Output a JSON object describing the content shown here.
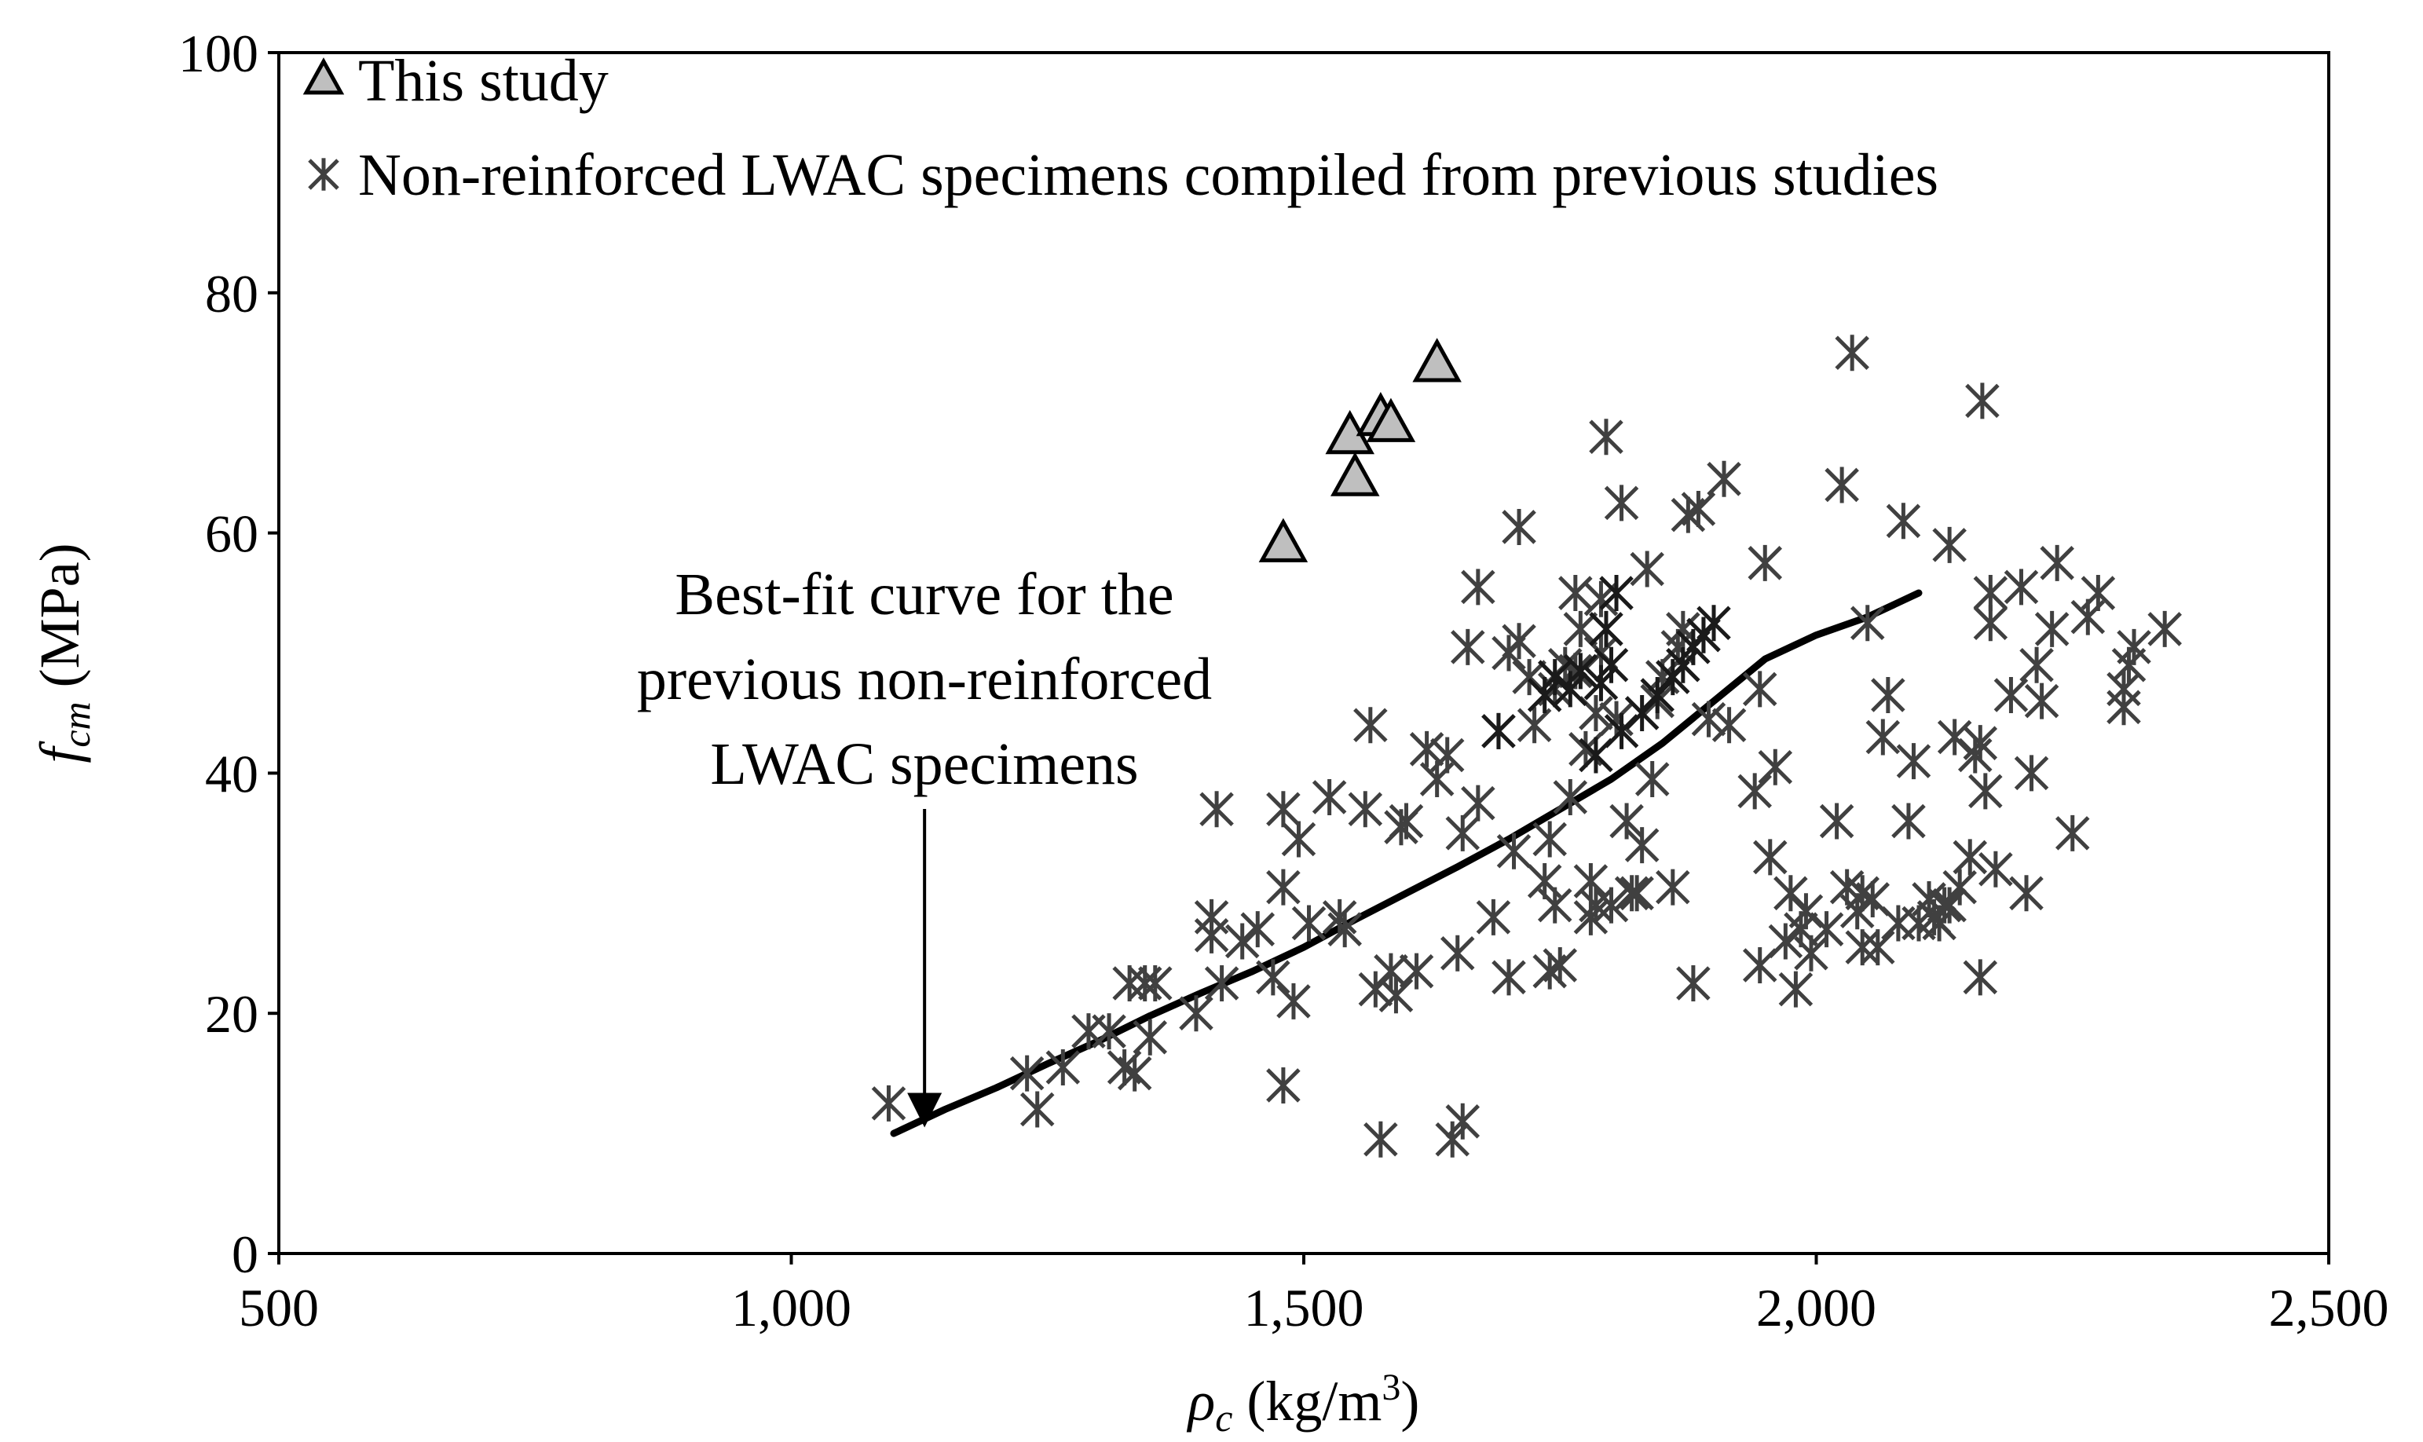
{
  "chart_data": {
    "type": "scatter",
    "title": "",
    "xlabel": {
      "symbol": "ρ",
      "subscript": "c",
      "unit_pre": " (kg/m",
      "unit_sup": "3",
      "unit_post": ")"
    },
    "ylabel": {
      "symbol": "f",
      "subscript": "cm",
      "unit": " (MPa)"
    },
    "xlim": [
      500,
      2500
    ],
    "ylim": [
      0,
      100
    ],
    "xticks": [
      500,
      1000,
      1500,
      2000,
      2500
    ],
    "xtick_labels": [
      "500",
      "1,000",
      "1,500",
      "2,000",
      "2,500"
    ],
    "yticks": [
      0,
      20,
      40,
      60,
      80,
      100
    ],
    "ytick_labels": [
      "0",
      "20",
      "40",
      "60",
      "80",
      "100"
    ],
    "grid": false,
    "legend_position": "top-left",
    "series": [
      {
        "name": "This study",
        "marker": "triangle",
        "color": "#bfbfbf",
        "points": [
          [
            1480,
            59
          ],
          [
            1550,
            64.5
          ],
          [
            1545,
            68
          ],
          [
            1575,
            69.5
          ],
          [
            1585,
            69
          ],
          [
            1630,
            74
          ]
        ]
      },
      {
        "name": "Non-reinforced LWAC specimens compiled from previous studies",
        "marker": "asterisk",
        "color": "#404040",
        "points": [
          [
            1095,
            12.5
          ],
          [
            1230,
            15
          ],
          [
            1240,
            12
          ],
          [
            1265,
            15.5
          ],
          [
            1290,
            18.5
          ],
          [
            1310,
            18.5
          ],
          [
            1325,
            15.5
          ],
          [
            1330,
            22.5
          ],
          [
            1335,
            15
          ],
          [
            1345,
            22.5
          ],
          [
            1350,
            18
          ],
          [
            1355,
            22.5
          ],
          [
            1395,
            20
          ],
          [
            1410,
            26.5
          ],
          [
            1410,
            28
          ],
          [
            1415,
            37
          ],
          [
            1420,
            22.5
          ],
          [
            1440,
            26
          ],
          [
            1455,
            27
          ],
          [
            1470,
            23
          ],
          [
            1480,
            30.5
          ],
          [
            1480,
            14
          ],
          [
            1480,
            37
          ],
          [
            1490,
            21
          ],
          [
            1495,
            34.5
          ],
          [
            1505,
            27.5
          ],
          [
            1525,
            38
          ],
          [
            1535,
            28
          ],
          [
            1540,
            27
          ],
          [
            1560,
            37
          ],
          [
            1565,
            44
          ],
          [
            1570,
            22
          ],
          [
            1575,
            9.5
          ],
          [
            1585,
            23.5
          ],
          [
            1590,
            21.5
          ],
          [
            1595,
            35.5
          ],
          [
            1600,
            36
          ],
          [
            1610,
            23.5
          ],
          [
            1620,
            42
          ],
          [
            1630,
            39.5
          ],
          [
            1640,
            41.5
          ],
          [
            1645,
            9.5
          ],
          [
            1650,
            25
          ],
          [
            1655,
            35
          ],
          [
            1655,
            11
          ],
          [
            1660,
            50.5
          ],
          [
            1670,
            55.5
          ],
          [
            1670,
            37.5
          ],
          [
            1685,
            28
          ],
          [
            1690,
            43.5
          ],
          [
            1700,
            50
          ],
          [
            1700,
            23
          ],
          [
            1705,
            33.5
          ],
          [
            1710,
            60.5
          ],
          [
            1710,
            51
          ],
          [
            1720,
            48
          ],
          [
            1725,
            44
          ],
          [
            1735,
            31
          ],
          [
            1740,
            23.5
          ],
          [
            1740,
            34.5
          ],
          [
            1745,
            29
          ],
          [
            1745,
            47
          ],
          [
            1750,
            24
          ],
          [
            1755,
            49
          ],
          [
            1760,
            38
          ],
          [
            1765,
            48.5
          ],
          [
            1765,
            55
          ],
          [
            1770,
            52
          ],
          [
            1775,
            42
          ],
          [
            1780,
            28
          ],
          [
            1780,
            31
          ],
          [
            1785,
            29
          ],
          [
            1785,
            45
          ],
          [
            1790,
            50
          ],
          [
            1790,
            54.5
          ],
          [
            1795,
            68
          ],
          [
            1800,
            29
          ],
          [
            1805,
            44.5
          ],
          [
            1810,
            62.5
          ],
          [
            1815,
            36
          ],
          [
            1820,
            30
          ],
          [
            1825,
            30
          ],
          [
            1830,
            34
          ],
          [
            1835,
            57
          ],
          [
            1840,
            39.5
          ],
          [
            1845,
            46
          ],
          [
            1850,
            48
          ],
          [
            1860,
            30.5
          ],
          [
            1865,
            50.5
          ],
          [
            1870,
            52
          ],
          [
            1875,
            61.5
          ],
          [
            1880,
            22.5
          ],
          [
            1885,
            62
          ],
          [
            1890,
            51.5
          ],
          [
            1895,
            44.5
          ],
          [
            1910,
            64.5
          ],
          [
            1915,
            44
          ],
          [
            1940,
            38.5
          ],
          [
            1945,
            24
          ],
          [
            1945,
            47
          ],
          [
            1950,
            57.5
          ],
          [
            1955,
            33
          ],
          [
            1960,
            40.5
          ],
          [
            1970,
            26
          ],
          [
            1975,
            30
          ],
          [
            1980,
            22
          ],
          [
            1985,
            27
          ],
          [
            1990,
            28.5
          ],
          [
            1995,
            25
          ],
          [
            2010,
            27
          ],
          [
            2020,
            36
          ],
          [
            2025,
            64
          ],
          [
            2030,
            30.5
          ],
          [
            2035,
            75
          ],
          [
            2040,
            28.5
          ],
          [
            2045,
            30
          ],
          [
            2045,
            25.5
          ],
          [
            2050,
            52.5
          ],
          [
            2055,
            29.5
          ],
          [
            2060,
            25.5
          ],
          [
            2065,
            43
          ],
          [
            2070,
            46.5
          ],
          [
            2080,
            27.5
          ],
          [
            2085,
            61
          ],
          [
            2090,
            36
          ],
          [
            2095,
            41
          ],
          [
            2100,
            27.5
          ],
          [
            2110,
            29.5
          ],
          [
            2115,
            28
          ],
          [
            2120,
            27.5
          ],
          [
            2125,
            29
          ],
          [
            2130,
            59
          ],
          [
            2130,
            29
          ],
          [
            2135,
            43
          ],
          [
            2140,
            30.5
          ],
          [
            2150,
            33
          ],
          [
            2155,
            41.5
          ],
          [
            2160,
            42.5
          ],
          [
            2160,
            23
          ],
          [
            2162,
            71
          ],
          [
            2165,
            38.5
          ],
          [
            2170,
            52.5
          ],
          [
            2170,
            55
          ],
          [
            2175,
            32
          ],
          [
            2190,
            46.5
          ],
          [
            2200,
            55.5
          ],
          [
            2205,
            30
          ],
          [
            2210,
            40
          ],
          [
            2215,
            49
          ],
          [
            2220,
            46
          ],
          [
            2230,
            52
          ],
          [
            2235,
            57.5
          ],
          [
            2250,
            35
          ],
          [
            2265,
            53
          ],
          [
            2275,
            55
          ],
          [
            2300,
            47
          ],
          [
            2300,
            45.5
          ],
          [
            2305,
            49
          ],
          [
            2310,
            50.5
          ],
          [
            2340,
            52
          ]
        ]
      },
      {
        "name": "",
        "marker": "asterisk",
        "color": "#1a1a1a",
        "points": [
          [
            1690,
            43.5
          ],
          [
            1735,
            46.5
          ],
          [
            1745,
            48
          ],
          [
            1760,
            47
          ],
          [
            1770,
            48.5
          ],
          [
            1785,
            41.5
          ],
          [
            1790,
            47.5
          ],
          [
            1795,
            52
          ],
          [
            1800,
            49
          ],
          [
            1805,
            55
          ],
          [
            1810,
            43.5
          ],
          [
            1830,
            45
          ],
          [
            1845,
            46.5
          ],
          [
            1860,
            48
          ],
          [
            1870,
            49
          ],
          [
            1880,
            50.5
          ],
          [
            1890,
            51.5
          ],
          [
            1900,
            52.5
          ]
        ]
      }
    ],
    "fit_curve": {
      "name": "Best-fit curve",
      "points": [
        [
          1100,
          10
        ],
        [
          1150,
          12
        ],
        [
          1200,
          13.8
        ],
        [
          1250,
          15.8
        ],
        [
          1300,
          17.7
        ],
        [
          1350,
          19.8
        ],
        [
          1400,
          21.7
        ],
        [
          1450,
          23.5
        ],
        [
          1500,
          25.5
        ],
        [
          1550,
          27.8
        ],
        [
          1600,
          30
        ],
        [
          1650,
          32.2
        ],
        [
          1700,
          34.5
        ],
        [
          1750,
          37
        ],
        [
          1800,
          39.5
        ],
        [
          1850,
          42.5
        ],
        [
          1900,
          46
        ],
        [
          1950,
          49.5
        ],
        [
          2000,
          51.5
        ],
        [
          2050,
          53
        ],
        [
          2100,
          55
        ]
      ]
    },
    "annotation": {
      "lines": [
        "Best-fit curve for the",
        "previous non-reinforced",
        "LWAC specimens"
      ],
      "arrow_target": [
        1130,
        10.5
      ]
    }
  }
}
